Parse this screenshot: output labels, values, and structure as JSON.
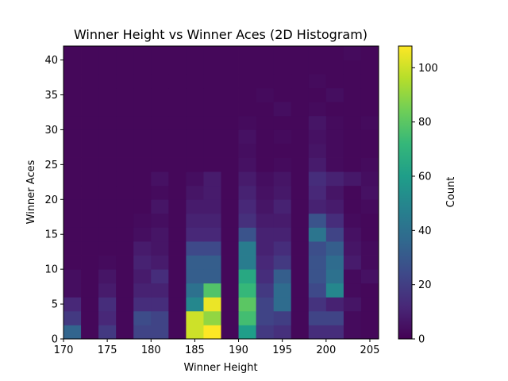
{
  "chart_data": {
    "type": "heatmap",
    "title": "Winner Height vs Winner Aces (2D Histogram)",
    "xlabel": "Winner Height",
    "ylabel": "Winner Aces",
    "xlim": [
      170,
      206
    ],
    "ylim": [
      0,
      42
    ],
    "x_ticks": [
      170,
      175,
      180,
      185,
      190,
      195,
      200,
      205
    ],
    "y_ticks": [
      0,
      5,
      10,
      15,
      20,
      25,
      30,
      35,
      40
    ],
    "x_bin_edges": [
      170,
      172,
      174,
      176,
      178,
      180,
      182,
      184,
      186,
      188,
      190,
      192,
      194,
      196,
      198,
      200,
      202,
      204,
      206
    ],
    "y_bin_edges": [
      0,
      2,
      4,
      6,
      8,
      10,
      12,
      14,
      16,
      18,
      20,
      22,
      24,
      26,
      28,
      30,
      32,
      34,
      36,
      38,
      40,
      42
    ],
    "counts": [
      [
        35,
        2,
        18,
        2,
        22,
        22,
        2,
        100,
        108,
        2,
        60,
        18,
        15,
        2,
        14,
        14,
        3,
        2
      ],
      [
        18,
        2,
        12,
        2,
        25,
        22,
        2,
        100,
        90,
        2,
        75,
        22,
        20,
        2,
        22,
        22,
        3,
        2
      ],
      [
        12,
        2,
        14,
        2,
        14,
        14,
        2,
        50,
        105,
        2,
        80,
        22,
        38,
        2,
        16,
        10,
        6,
        2
      ],
      [
        4,
        2,
        8,
        2,
        10,
        10,
        2,
        40,
        78,
        2,
        72,
        18,
        38,
        2,
        24,
        50,
        3,
        2
      ],
      [
        4,
        2,
        6,
        2,
        8,
        14,
        2,
        32,
        32,
        2,
        65,
        14,
        32,
        2,
        28,
        40,
        3,
        5
      ],
      [
        2,
        2,
        3,
        2,
        10,
        8,
        2,
        32,
        32,
        2,
        45,
        12,
        18,
        2,
        28,
        38,
        8,
        3
      ],
      [
        2,
        2,
        2,
        2,
        8,
        6,
        2,
        24,
        24,
        2,
        45,
        10,
        14,
        2,
        26,
        32,
        6,
        3
      ],
      [
        2,
        2,
        2,
        2,
        4,
        6,
        2,
        12,
        12,
        2,
        28,
        10,
        10,
        2,
        42,
        22,
        5,
        2
      ],
      [
        2,
        2,
        2,
        2,
        3,
        4,
        2,
        10,
        10,
        2,
        15,
        8,
        8,
        2,
        28,
        14,
        3,
        2
      ],
      [
        2,
        2,
        2,
        2,
        2,
        6,
        2,
        8,
        8,
        2,
        12,
        6,
        10,
        2,
        10,
        8,
        2,
        3
      ],
      [
        2,
        2,
        2,
        2,
        2,
        3,
        2,
        6,
        8,
        2,
        10,
        5,
        7,
        2,
        12,
        6,
        2,
        5
      ],
      [
        2,
        2,
        2,
        2,
        2,
        5,
        2,
        4,
        8,
        2,
        8,
        4,
        6,
        2,
        14,
        10,
        7,
        4
      ],
      [
        2,
        2,
        2,
        2,
        2,
        2,
        2,
        2,
        2,
        2,
        5,
        2,
        3,
        2,
        8,
        3,
        2,
        3
      ],
      [
        2,
        2,
        2,
        2,
        2,
        2,
        2,
        2,
        2,
        2,
        4,
        2,
        2,
        2,
        6,
        3,
        2,
        2
      ],
      [
        2,
        2,
        2,
        2,
        2,
        2,
        2,
        2,
        2,
        2,
        5,
        2,
        3,
        2,
        5,
        3,
        2,
        2
      ],
      [
        2,
        2,
        2,
        2,
        2,
        2,
        2,
        2,
        2,
        2,
        3,
        2,
        2,
        2,
        6,
        3,
        2,
        3
      ],
      [
        2,
        2,
        2,
        2,
        2,
        2,
        2,
        2,
        2,
        2,
        2,
        2,
        4,
        2,
        3,
        2,
        2,
        2
      ],
      [
        2,
        2,
        2,
        2,
        2,
        2,
        2,
        2,
        2,
        2,
        2,
        3,
        2,
        2,
        2,
        4,
        2,
        2
      ],
      [
        2,
        2,
        2,
        2,
        2,
        2,
        2,
        2,
        2,
        2,
        2,
        2,
        2,
        2,
        3,
        2,
        2,
        2
      ],
      [
        2,
        2,
        2,
        2,
        2,
        2,
        2,
        2,
        2,
        2,
        2,
        2,
        2,
        2,
        2,
        2,
        2,
        2
      ],
      [
        2,
        2,
        2,
        2,
        2,
        2,
        2,
        2,
        2,
        2,
        2,
        2,
        2,
        2,
        2,
        2,
        3,
        2
      ]
    ],
    "colormap": "viridis",
    "colorbar": {
      "label": "Count",
      "range": [
        0,
        108
      ],
      "ticks": [
        0,
        20,
        40,
        60,
        80,
        100
      ]
    },
    "grid": false,
    "legend": "none"
  }
}
